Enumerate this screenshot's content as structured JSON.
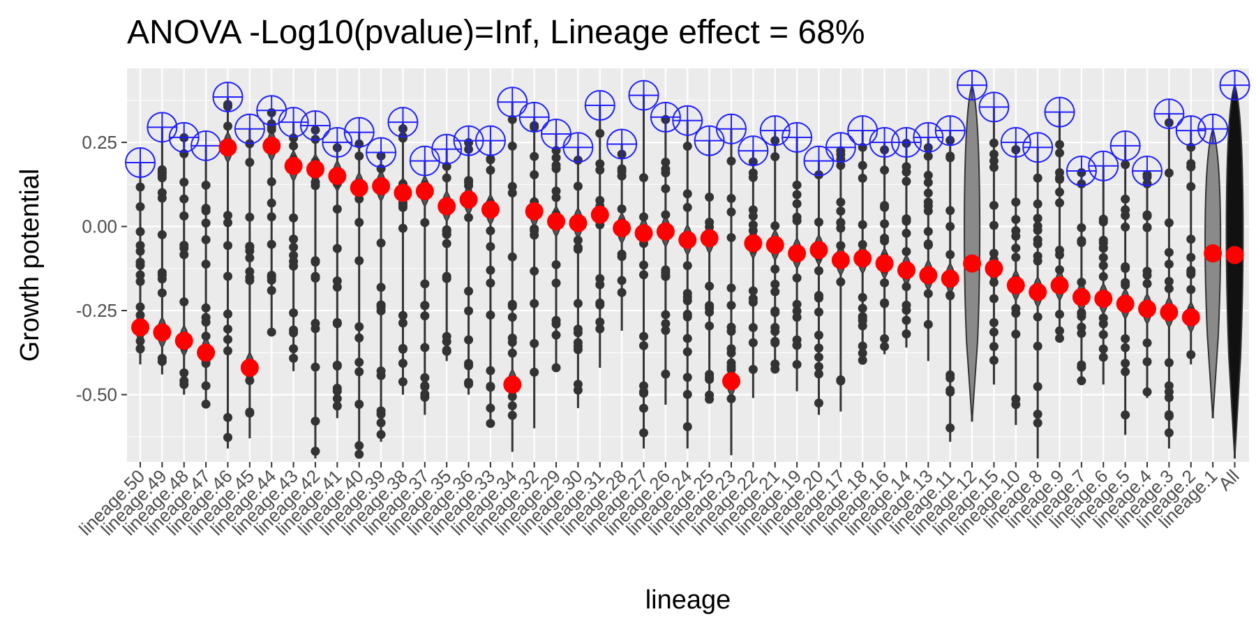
{
  "chart_data": {
    "type": "violin",
    "title": "ANOVA -Log10(pvalue)=Inf, Lineage effect = 68%",
    "xlabel": "lineage",
    "ylabel": "Growth potential",
    "ylim": [
      -0.7,
      0.47
    ],
    "yticks": [
      0.25,
      0.0,
      -0.25,
      -0.5
    ],
    "ytick_labels": [
      "0.25",
      "0.00",
      "-0.25",
      "-0.50"
    ],
    "grid": true,
    "categories": [
      "lineage.50",
      "lineage.49",
      "lineage.48",
      "lineage.47",
      "lineage.46",
      "lineage.45",
      "lineage.44",
      "lineage.43",
      "lineage.42",
      "lineage.41",
      "lineage.40",
      "lineage.39",
      "lineage.38",
      "lineage.37",
      "lineage.35",
      "lineage.36",
      "lineage.33",
      "lineage.34",
      "lineage.32",
      "lineage.29",
      "lineage.30",
      "lineage.31",
      "lineage.28",
      "lineage.27",
      "lineage.26",
      "lineage.24",
      "lineage.25",
      "lineage.23",
      "lineage.22",
      "lineage.21",
      "lineage.19",
      "lineage.20",
      "lineage.17",
      "lineage.18",
      "lineage.16",
      "lineage.14",
      "lineage.13",
      "lineage.11",
      "lineage.12",
      "lineage.15",
      "lineage.10",
      "lineage.8",
      "lineage.9",
      "lineage.7",
      "lineage.6",
      "lineage.5",
      "lineage.4",
      "lineage.3",
      "lineage.2",
      "lineage.1",
      "All"
    ],
    "series": [
      {
        "name": "mean",
        "marker": "red-dot",
        "values": [
          -0.3,
          -0.315,
          -0.34,
          -0.375,
          0.235,
          -0.42,
          0.24,
          0.18,
          0.17,
          0.15,
          0.115,
          0.12,
          0.1,
          0.105,
          0.06,
          0.08,
          0.05,
          -0.47,
          0.045,
          0.015,
          0.01,
          0.035,
          -0.005,
          -0.02,
          -0.015,
          -0.04,
          -0.035,
          -0.46,
          -0.05,
          -0.055,
          -0.08,
          -0.07,
          -0.1,
          -0.095,
          -0.11,
          -0.13,
          -0.145,
          -0.155,
          -0.11,
          -0.125,
          -0.175,
          -0.195,
          -0.175,
          -0.21,
          -0.215,
          -0.23,
          -0.245,
          -0.255,
          -0.27,
          -0.08,
          -0.085
        ]
      },
      {
        "name": "max",
        "marker": "blue-crosshair",
        "values": [
          0.19,
          0.295,
          0.265,
          0.24,
          0.385,
          0.29,
          0.345,
          0.31,
          0.3,
          0.25,
          0.28,
          0.22,
          0.31,
          0.195,
          0.23,
          0.255,
          0.255,
          0.37,
          0.325,
          0.275,
          0.235,
          0.36,
          0.245,
          0.39,
          0.325,
          0.315,
          0.255,
          0.29,
          0.225,
          0.285,
          0.265,
          0.195,
          0.235,
          0.285,
          0.25,
          0.25,
          0.265,
          0.285,
          0.42,
          0.355,
          0.25,
          0.235,
          0.34,
          0.165,
          0.18,
          0.24,
          0.165,
          0.335,
          0.285,
          0.29,
          0.42
        ]
      },
      {
        "name": "min",
        "values": [
          -0.41,
          -0.44,
          -0.5,
          -0.53,
          -0.66,
          -0.63,
          -0.32,
          -0.43,
          -0.69,
          -0.57,
          -0.68,
          -0.64,
          -0.5,
          -0.56,
          -0.4,
          -0.5,
          -0.59,
          -0.67,
          -0.6,
          -0.42,
          -0.54,
          -0.42,
          -0.31,
          -0.66,
          -0.53,
          -0.66,
          -0.52,
          -0.68,
          -0.51,
          -0.43,
          -0.49,
          -0.56,
          -0.55,
          -0.41,
          -0.38,
          -0.36,
          -0.4,
          -0.64,
          -0.58,
          -0.47,
          -0.59,
          -0.69,
          -0.34,
          -0.47,
          -0.47,
          -0.62,
          -0.51,
          -0.66,
          -0.41,
          -0.57,
          -0.69
        ]
      }
    ]
  }
}
